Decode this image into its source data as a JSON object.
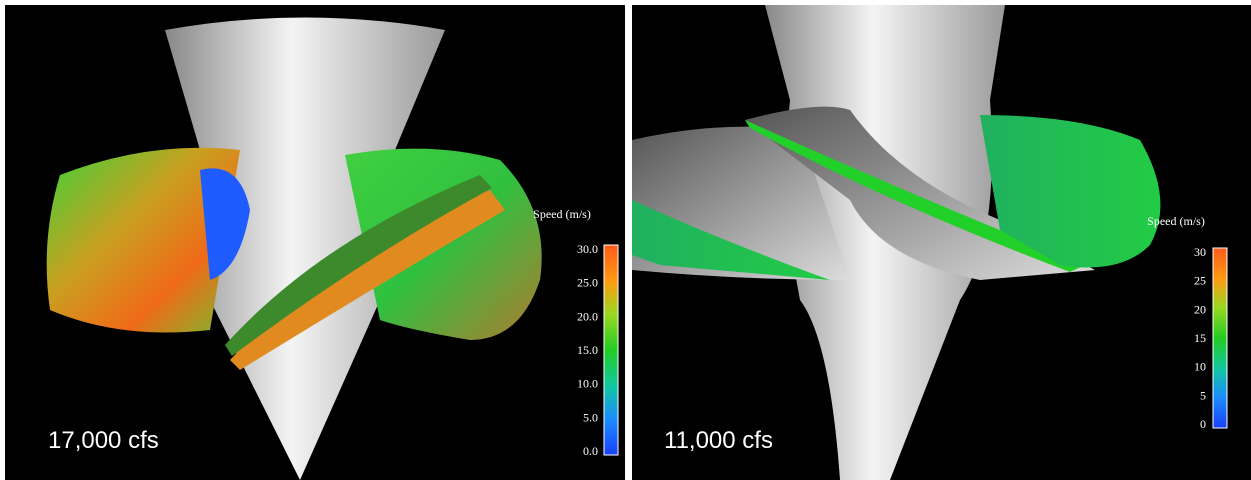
{
  "panels": [
    {
      "caption": "17,000 cfs",
      "colorbar": {
        "title": "Speed (m/s)",
        "ticks": [
          "30.0",
          "25.0",
          "20.0",
          "15.0",
          "10.0",
          "5.0",
          "0.0"
        ]
      }
    },
    {
      "caption": "11,000 cfs",
      "colorbar": {
        "title": "Speed (m/s)",
        "ticks": [
          "30",
          "25",
          "20",
          "15",
          "10",
          "5",
          "0"
        ]
      }
    }
  ]
}
